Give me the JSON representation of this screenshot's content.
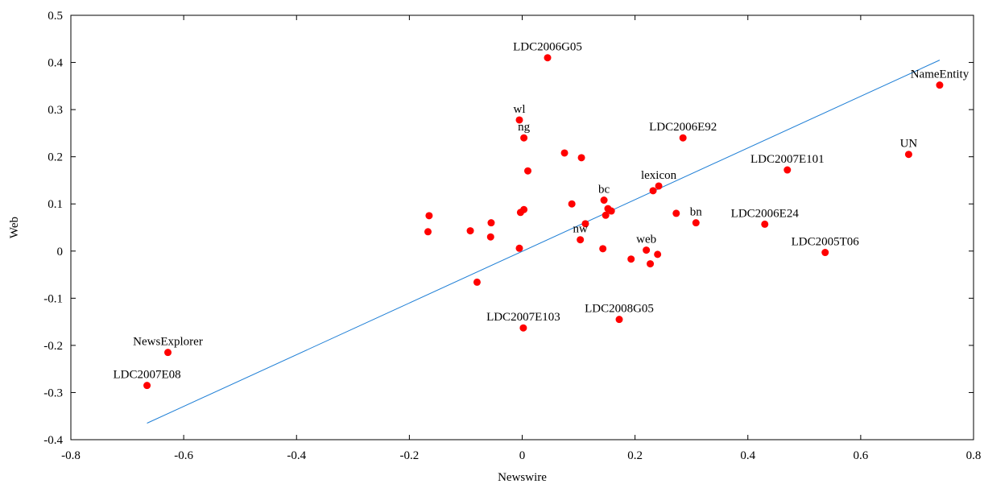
{
  "chart_data": {
    "type": "scatter",
    "title": "",
    "xlabel": "Newswire",
    "ylabel": "Web",
    "xlim": [
      -0.8,
      0.8
    ],
    "ylim": [
      -0.4,
      0.5
    ],
    "xticks": [
      -0.8,
      -0.6,
      -0.4,
      -0.2,
      0,
      0.2,
      0.4,
      0.6,
      0.8
    ],
    "xtick_labels": [
      "-0.8",
      "-0.6",
      "-0.4",
      "-0.2",
      "0",
      "0.2",
      "0.4",
      "0.6",
      "0.8"
    ],
    "yticks": [
      -0.4,
      -0.3,
      -0.2,
      -0.1,
      0,
      0.1,
      0.2,
      0.3,
      0.4,
      0.5
    ],
    "ytick_labels": [
      "-0.4",
      "-0.3",
      "-0.2",
      "-0.1",
      "0",
      "0.1",
      "0.2",
      "0.3",
      "0.4",
      "0.5"
    ],
    "grid": false,
    "point_color": "#ff0000",
    "fit_line_color": "#1f7fd6",
    "fit_line": {
      "x": [
        -0.665,
        0.74
      ],
      "y": [
        -0.365,
        0.405
      ]
    },
    "points": [
      {
        "x": 0.045,
        "y": 0.41,
        "label": "LDC2006G05"
      },
      {
        "x": 0.74,
        "y": 0.352,
        "label": "NameEntity"
      },
      {
        "x": -0.005,
        "y": 0.278,
        "label": "wl"
      },
      {
        "x": 0.003,
        "y": 0.24,
        "label": "ng"
      },
      {
        "x": 0.285,
        "y": 0.24,
        "label": "LDC2006E92"
      },
      {
        "x": 0.685,
        "y": 0.205,
        "label": "UN"
      },
      {
        "x": 0.47,
        "y": 0.172,
        "label": "LDC2007E101"
      },
      {
        "x": 0.242,
        "y": 0.138,
        "label": "lexicon"
      },
      {
        "x": 0.145,
        "y": 0.108,
        "label": "bc"
      },
      {
        "x": 0.308,
        "y": 0.06,
        "label": "bn"
      },
      {
        "x": 0.43,
        "y": 0.057,
        "label": "LDC2006E24"
      },
      {
        "x": 0.103,
        "y": 0.024,
        "label": "nw"
      },
      {
        "x": 0.537,
        "y": -0.003,
        "label": "LDC2005T06"
      },
      {
        "x": 0.22,
        "y": 0.002,
        "label": "web"
      },
      {
        "x": 0.172,
        "y": -0.145,
        "label": "LDC2008G05"
      },
      {
        "x": 0.002,
        "y": -0.163,
        "label": "LDC2007E103"
      },
      {
        "x": -0.628,
        "y": -0.215,
        "label": "NewsExplorer"
      },
      {
        "x": -0.665,
        "y": -0.285,
        "label": "LDC2007E08"
      },
      {
        "x": 0.075,
        "y": 0.208,
        "label": ""
      },
      {
        "x": 0.105,
        "y": 0.198,
        "label": ""
      },
      {
        "x": 0.01,
        "y": 0.17,
        "label": ""
      },
      {
        "x": 0.232,
        "y": 0.128,
        "label": ""
      },
      {
        "x": 0.088,
        "y": 0.1,
        "label": ""
      },
      {
        "x": 0.152,
        "y": 0.09,
        "label": ""
      },
      {
        "x": 0.158,
        "y": 0.085,
        "label": ""
      },
      {
        "x": 0.003,
        "y": 0.088,
        "label": ""
      },
      {
        "x": -0.003,
        "y": 0.082,
        "label": ""
      },
      {
        "x": 0.273,
        "y": 0.08,
        "label": ""
      },
      {
        "x": 0.148,
        "y": 0.076,
        "label": ""
      },
      {
        "x": -0.165,
        "y": 0.075,
        "label": ""
      },
      {
        "x": -0.055,
        "y": 0.06,
        "label": ""
      },
      {
        "x": 0.112,
        "y": 0.058,
        "label": ""
      },
      {
        "x": -0.092,
        "y": 0.043,
        "label": ""
      },
      {
        "x": -0.167,
        "y": 0.041,
        "label": ""
      },
      {
        "x": -0.056,
        "y": 0.03,
        "label": ""
      },
      {
        "x": -0.005,
        "y": 0.006,
        "label": ""
      },
      {
        "x": 0.143,
        "y": 0.005,
        "label": ""
      },
      {
        "x": 0.24,
        "y": -0.007,
        "label": ""
      },
      {
        "x": 0.193,
        "y": -0.017,
        "label": ""
      },
      {
        "x": 0.227,
        "y": -0.027,
        "label": ""
      },
      {
        "x": -0.08,
        "y": -0.066,
        "label": ""
      }
    ]
  }
}
